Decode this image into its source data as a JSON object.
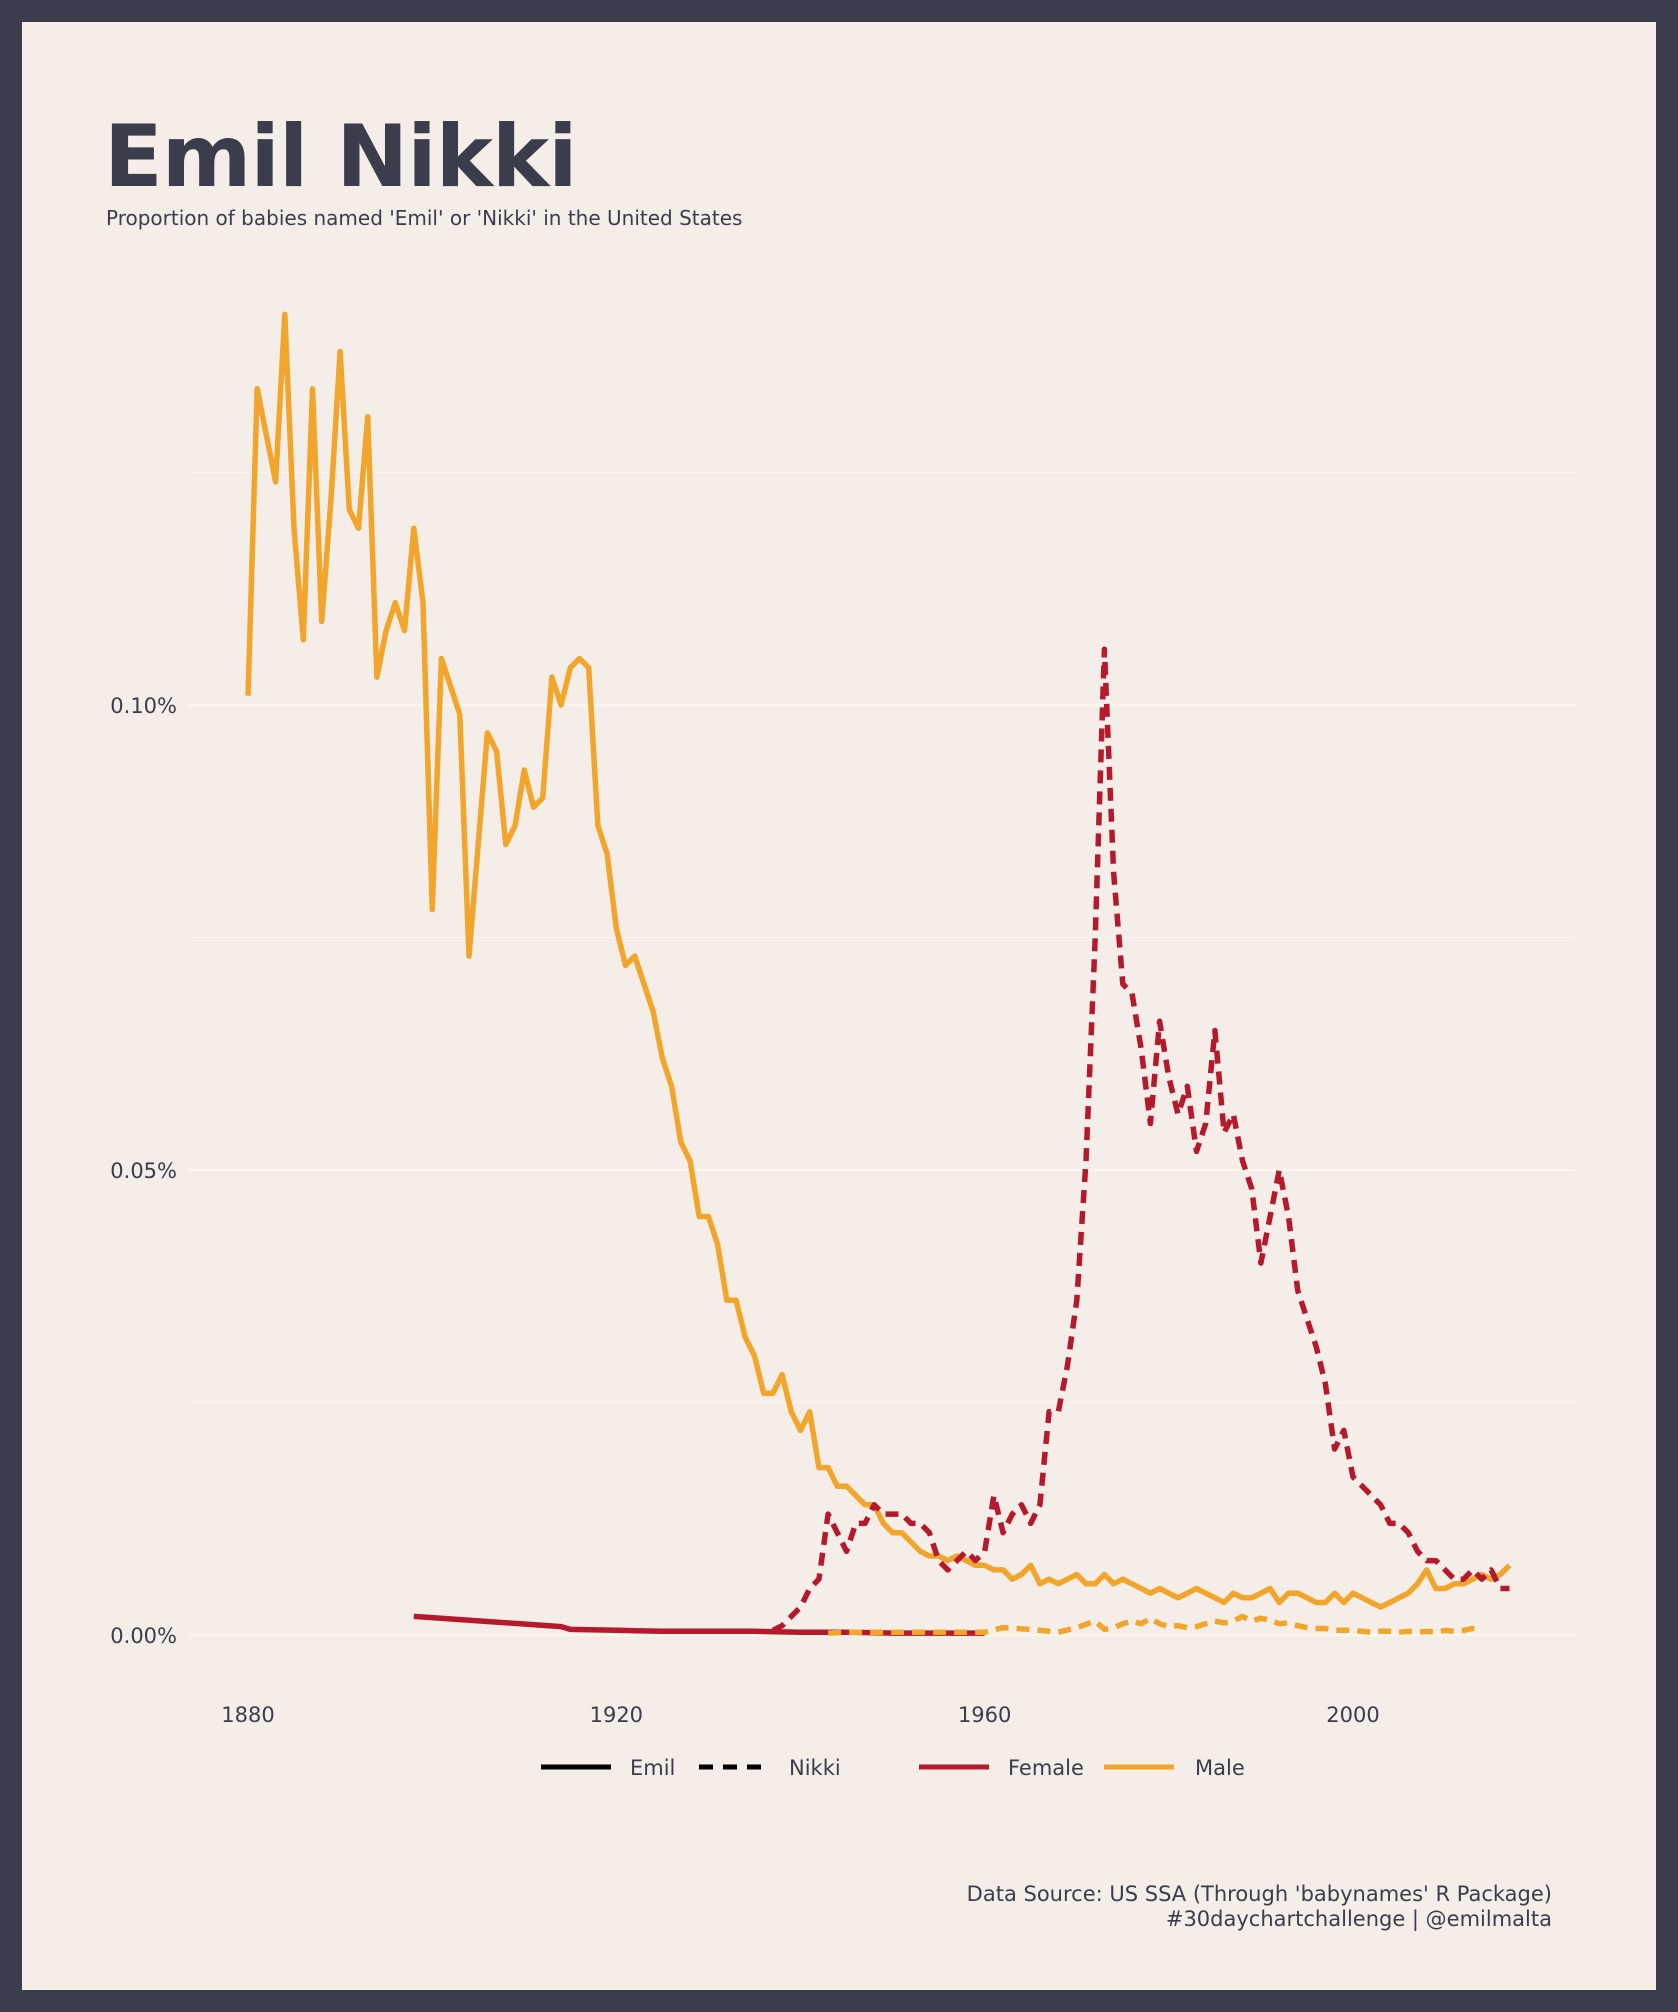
{
  "title": "Emil Nikki",
  "subtitle": "Proportion of babies named 'Emil' or 'Nikki' in the United States",
  "caption": {
    "source": "Data Source: US SSA (Through 'babynames' R Package)",
    "credit": "#30daychartchallenge | @emilmalta"
  },
  "legend": {
    "emil": "Emil",
    "nikki": "Nikki",
    "female": "Female",
    "male": "Male"
  },
  "colors": {
    "background": "#f4ede8",
    "frame": "#3b3d4c",
    "female": "#b5192c",
    "male": "#f2a52b",
    "grid": "#fbf7ec"
  },
  "chart_data": {
    "type": "line",
    "xlim": [
      1875,
      2022
    ],
    "ylim": [
      -0.005,
      0.14
    ],
    "x_ticks": [
      1880,
      1920,
      1960,
      2000
    ],
    "y_ticks": [
      {
        "value": 0.0,
        "label": "0.00%"
      },
      {
        "value": 0.05,
        "label": "0.05%"
      },
      {
        "value": 0.1,
        "label": "0.10%"
      }
    ],
    "minor_gridlines": [
      0.025,
      0.075,
      0.125
    ],
    "series": [
      {
        "name": "Emil",
        "sex": "Male",
        "dash": "solid",
        "x": [
          1880,
          1881,
          1882,
          1883,
          1884,
          1885,
          1886,
          1887,
          1888,
          1889,
          1890,
          1891,
          1892,
          1893,
          1894,
          1895,
          1896,
          1897,
          1898,
          1899,
          1900,
          1901,
          1902,
          1903,
          1904,
          1905,
          1906,
          1907,
          1908,
          1909,
          1910,
          1911,
          1912,
          1913,
          1914,
          1915,
          1916,
          1917,
          1918,
          1919,
          1920,
          1921,
          1922,
          1923,
          1924,
          1925,
          1926,
          1927,
          1928,
          1929,
          1930,
          1931,
          1932,
          1933,
          1934,
          1935,
          1936,
          1937,
          1938,
          1939,
          1940,
          1941,
          1942,
          1943,
          1944,
          1945,
          1946,
          1947,
          1948,
          1949,
          1950,
          1951,
          1952,
          1953,
          1954,
          1955,
          1956,
          1957,
          1958,
          1959,
          1960,
          1961,
          1962,
          1963,
          1964,
          1965,
          1966,
          1967,
          1968,
          1969,
          1970,
          1971,
          1972,
          1973,
          1974,
          1975,
          1976,
          1977,
          1978,
          1979,
          1980,
          1981,
          1982,
          1983,
          1984,
          1985,
          1986,
          1987,
          1988,
          1989,
          1990,
          1991,
          1992,
          1993,
          1994,
          1995,
          1996,
          1997,
          1998,
          1999,
          2000,
          2001,
          2002,
          2003,
          2004,
          2005,
          2006,
          2007,
          2008,
          2009,
          2010,
          2011,
          2012,
          2013,
          2014,
          2015,
          2016,
          2017
        ],
        "values": [
          0.101,
          0.134,
          0.129,
          0.124,
          0.142,
          0.119,
          0.107,
          0.134,
          0.109,
          0.122,
          0.138,
          0.121,
          0.119,
          0.131,
          0.103,
          0.108,
          0.111,
          0.108,
          0.119,
          0.111,
          0.078,
          0.105,
          0.102,
          0.099,
          0.073,
          0.085,
          0.097,
          0.095,
          0.085,
          0.087,
          0.093,
          0.089,
          0.09,
          0.103,
          0.1,
          0.104,
          0.105,
          0.104,
          0.087,
          0.084,
          0.076,
          0.072,
          0.073,
          0.07,
          0.067,
          0.062,
          0.059,
          0.053,
          0.051,
          0.045,
          0.045,
          0.042,
          0.036,
          0.036,
          0.032,
          0.03,
          0.026,
          0.026,
          0.028,
          0.024,
          0.022,
          0.024,
          0.018,
          0.018,
          0.016,
          0.016,
          0.015,
          0.014,
          0.014,
          0.012,
          0.011,
          0.011,
          0.01,
          0.009,
          0.0085,
          0.0085,
          0.008,
          0.0085,
          0.008,
          0.0075,
          0.0075,
          0.007,
          0.007,
          0.006,
          0.0065,
          0.0075,
          0.0055,
          0.006,
          0.0055,
          0.006,
          0.0065,
          0.0055,
          0.0055,
          0.0065,
          0.0055,
          0.006,
          0.0055,
          0.005,
          0.0045,
          0.005,
          0.0045,
          0.004,
          0.0045,
          0.005,
          0.0045,
          0.004,
          0.0035,
          0.0045,
          0.004,
          0.004,
          0.0045,
          0.005,
          0.0035,
          0.0045,
          0.0045,
          0.004,
          0.0035,
          0.0035,
          0.0045,
          0.0035,
          0.0045,
          0.004,
          0.0035,
          0.003,
          0.0035,
          0.004,
          0.0045,
          0.0055,
          0.007,
          0.005,
          0.005,
          0.0055,
          0.0055,
          0.006,
          0.0065,
          0.006,
          0.0065,
          0.0075
        ]
      },
      {
        "name": "Emil",
        "sex": "Female",
        "dash": "solid",
        "x": [
          1898,
          1914,
          1915,
          1920,
          1925,
          1930,
          1935,
          1940,
          1945,
          1950,
          1955,
          1960
        ],
        "values": [
          0.002,
          0.0009,
          0.0006,
          0.0005,
          0.0004,
          0.0004,
          0.0004,
          0.0003,
          0.0003,
          0.0002,
          0.0002,
          0.0002
        ]
      },
      {
        "name": "Nikki",
        "sex": "Female",
        "dash": "dashed",
        "x": [
          1937,
          1938,
          1939,
          1940,
          1941,
          1942,
          1943,
          1944,
          1945,
          1946,
          1947,
          1948,
          1949,
          1950,
          1951,
          1952,
          1953,
          1954,
          1955,
          1956,
          1957,
          1958,
          1959,
          1960,
          1961,
          1962,
          1963,
          1964,
          1965,
          1966,
          1967,
          1968,
          1969,
          1970,
          1971,
          1972,
          1973,
          1974,
          1975,
          1976,
          1977,
          1978,
          1979,
          1980,
          1981,
          1982,
          1983,
          1984,
          1985,
          1986,
          1987,
          1988,
          1989,
          1990,
          1991,
          1992,
          1993,
          1994,
          1995,
          1996,
          1997,
          1998,
          1999,
          2000,
          2001,
          2002,
          2003,
          2004,
          2005,
          2006,
          2007,
          2008,
          2009,
          2010,
          2011,
          2012,
          2013,
          2014,
          2015,
          2016,
          2017
        ],
        "values": [
          0.0005,
          0.001,
          0.002,
          0.003,
          0.005,
          0.006,
          0.013,
          0.011,
          0.009,
          0.012,
          0.012,
          0.014,
          0.013,
          0.013,
          0.013,
          0.012,
          0.012,
          0.011,
          0.008,
          0.007,
          0.008,
          0.009,
          0.008,
          0.009,
          0.015,
          0.011,
          0.013,
          0.014,
          0.012,
          0.014,
          0.024,
          0.024,
          0.029,
          0.036,
          0.051,
          0.075,
          0.106,
          0.082,
          0.07,
          0.069,
          0.063,
          0.055,
          0.066,
          0.06,
          0.056,
          0.059,
          0.052,
          0.055,
          0.065,
          0.054,
          0.056,
          0.051,
          0.048,
          0.04,
          0.045,
          0.05,
          0.045,
          0.037,
          0.034,
          0.031,
          0.027,
          0.02,
          0.022,
          0.017,
          0.016,
          0.015,
          0.014,
          0.012,
          0.012,
          0.011,
          0.009,
          0.008,
          0.008,
          0.007,
          0.006,
          0.006,
          0.007,
          0.006,
          0.007,
          0.005,
          0.005
        ]
      },
      {
        "name": "Nikki",
        "sex": "Male",
        "dash": "dashed",
        "x": [
          1943,
          1945,
          1950,
          1955,
          1960,
          1962,
          1965,
          1968,
          1970,
          1972,
          1973,
          1974,
          1975,
          1976,
          1977,
          1978,
          1979,
          1980,
          1981,
          1982,
          1983,
          1984,
          1985,
          1986,
          1987,
          1988,
          1989,
          1990,
          1991,
          1992,
          1993,
          1994,
          1995,
          1996,
          1997,
          1998,
          1999,
          2000,
          2001,
          2002,
          2003,
          2004,
          2005,
          2006,
          2007,
          2008,
          2009,
          2010,
          2011,
          2012,
          2013,
          2014
        ],
        "values": [
          0.0002,
          0.0003,
          0.0003,
          0.0003,
          0.0003,
          0.0008,
          0.0006,
          0.0003,
          0.0008,
          0.0015,
          0.0006,
          0.0008,
          0.0012,
          0.0015,
          0.0012,
          0.0018,
          0.0012,
          0.0009,
          0.001,
          0.0008,
          0.0009,
          0.0012,
          0.0015,
          0.0013,
          0.0015,
          0.002,
          0.0015,
          0.0018,
          0.0016,
          0.0012,
          0.0013,
          0.001,
          0.0008,
          0.0007,
          0.0007,
          0.0005,
          0.0005,
          0.0005,
          0.0004,
          0.0003,
          0.0004,
          0.0004,
          0.0003,
          0.0004,
          0.0003,
          0.0004,
          0.0003,
          0.0005,
          0.0004,
          0.0005,
          0.0007,
          0.0006
        ]
      }
    ]
  }
}
